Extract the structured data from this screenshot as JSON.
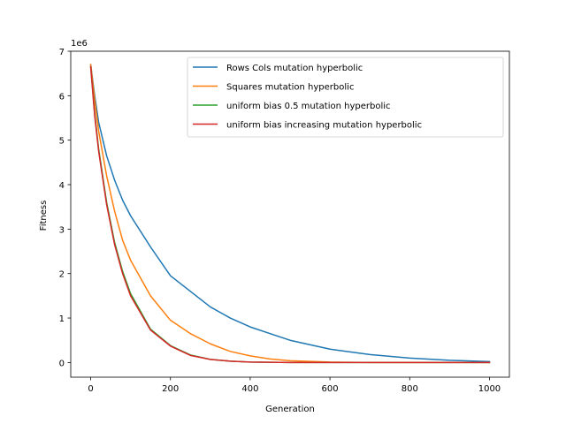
{
  "chart_data": {
    "type": "line",
    "title": "",
    "xlabel": "Generation",
    "ylabel": "Fitness",
    "y_offset_label": "1e6",
    "xlim": [
      -50,
      1050
    ],
    "ylim": [
      -0.33,
      7.0
    ],
    "x_ticks": [
      0,
      200,
      400,
      600,
      800,
      1000
    ],
    "x_tick_labels": [
      "0",
      "200",
      "400",
      "600",
      "800",
      "1000"
    ],
    "y_ticks": [
      0,
      1,
      2,
      3,
      4,
      5,
      6,
      7
    ],
    "y_tick_labels": [
      "0",
      "1",
      "2",
      "3",
      "4",
      "5",
      "6",
      "7"
    ],
    "grid": false,
    "legend_position": "top-right",
    "series": [
      {
        "name": "Rows Cols mutation hyperbolic",
        "color": "#1f77b4",
        "x": [
          0,
          10,
          20,
          40,
          60,
          80,
          100,
          150,
          200,
          250,
          300,
          350,
          400,
          450,
          500,
          600,
          700,
          800,
          900,
          1000
        ],
        "y": [
          6.7,
          6.0,
          5.4,
          4.65,
          4.1,
          3.65,
          3.3,
          2.6,
          1.95,
          1.6,
          1.25,
          1.0,
          0.8,
          0.65,
          0.5,
          0.3,
          0.18,
          0.1,
          0.05,
          0.02
        ]
      },
      {
        "name": "Squares mutation hyperbolic",
        "color": "#ff7f0e",
        "x": [
          0,
          10,
          20,
          40,
          60,
          80,
          100,
          150,
          200,
          250,
          300,
          350,
          400,
          450,
          500,
          600,
          700,
          800,
          900,
          1000
        ],
        "y": [
          6.7,
          5.9,
          5.2,
          4.2,
          3.4,
          2.75,
          2.3,
          1.5,
          0.95,
          0.65,
          0.42,
          0.25,
          0.15,
          0.08,
          0.04,
          0.01,
          0.0,
          0.0,
          0.0,
          0.0
        ]
      },
      {
        "name": "uniform bias 0.5 mutation hyperbolic",
        "color": "#2ca02c",
        "x": [
          0,
          10,
          20,
          40,
          60,
          80,
          100,
          150,
          200,
          250,
          300,
          350,
          400,
          500,
          600,
          700,
          800,
          900,
          1000
        ],
        "y": [
          6.65,
          5.6,
          4.8,
          3.6,
          2.7,
          2.05,
          1.55,
          0.75,
          0.38,
          0.17,
          0.07,
          0.03,
          0.01,
          0.0,
          0.0,
          0.0,
          0.0,
          0.0,
          0.0
        ]
      },
      {
        "name": "uniform bias increasing mutation hyperbolic",
        "color": "#d62728",
        "x": [
          0,
          10,
          20,
          40,
          60,
          80,
          100,
          150,
          200,
          250,
          300,
          350,
          400,
          500,
          600,
          700,
          800,
          900,
          1000
        ],
        "y": [
          6.65,
          5.55,
          4.75,
          3.55,
          2.65,
          2.0,
          1.5,
          0.73,
          0.37,
          0.16,
          0.07,
          0.03,
          0.01,
          0.0,
          0.0,
          0.0,
          0.0,
          0.0,
          0.0
        ]
      }
    ]
  }
}
